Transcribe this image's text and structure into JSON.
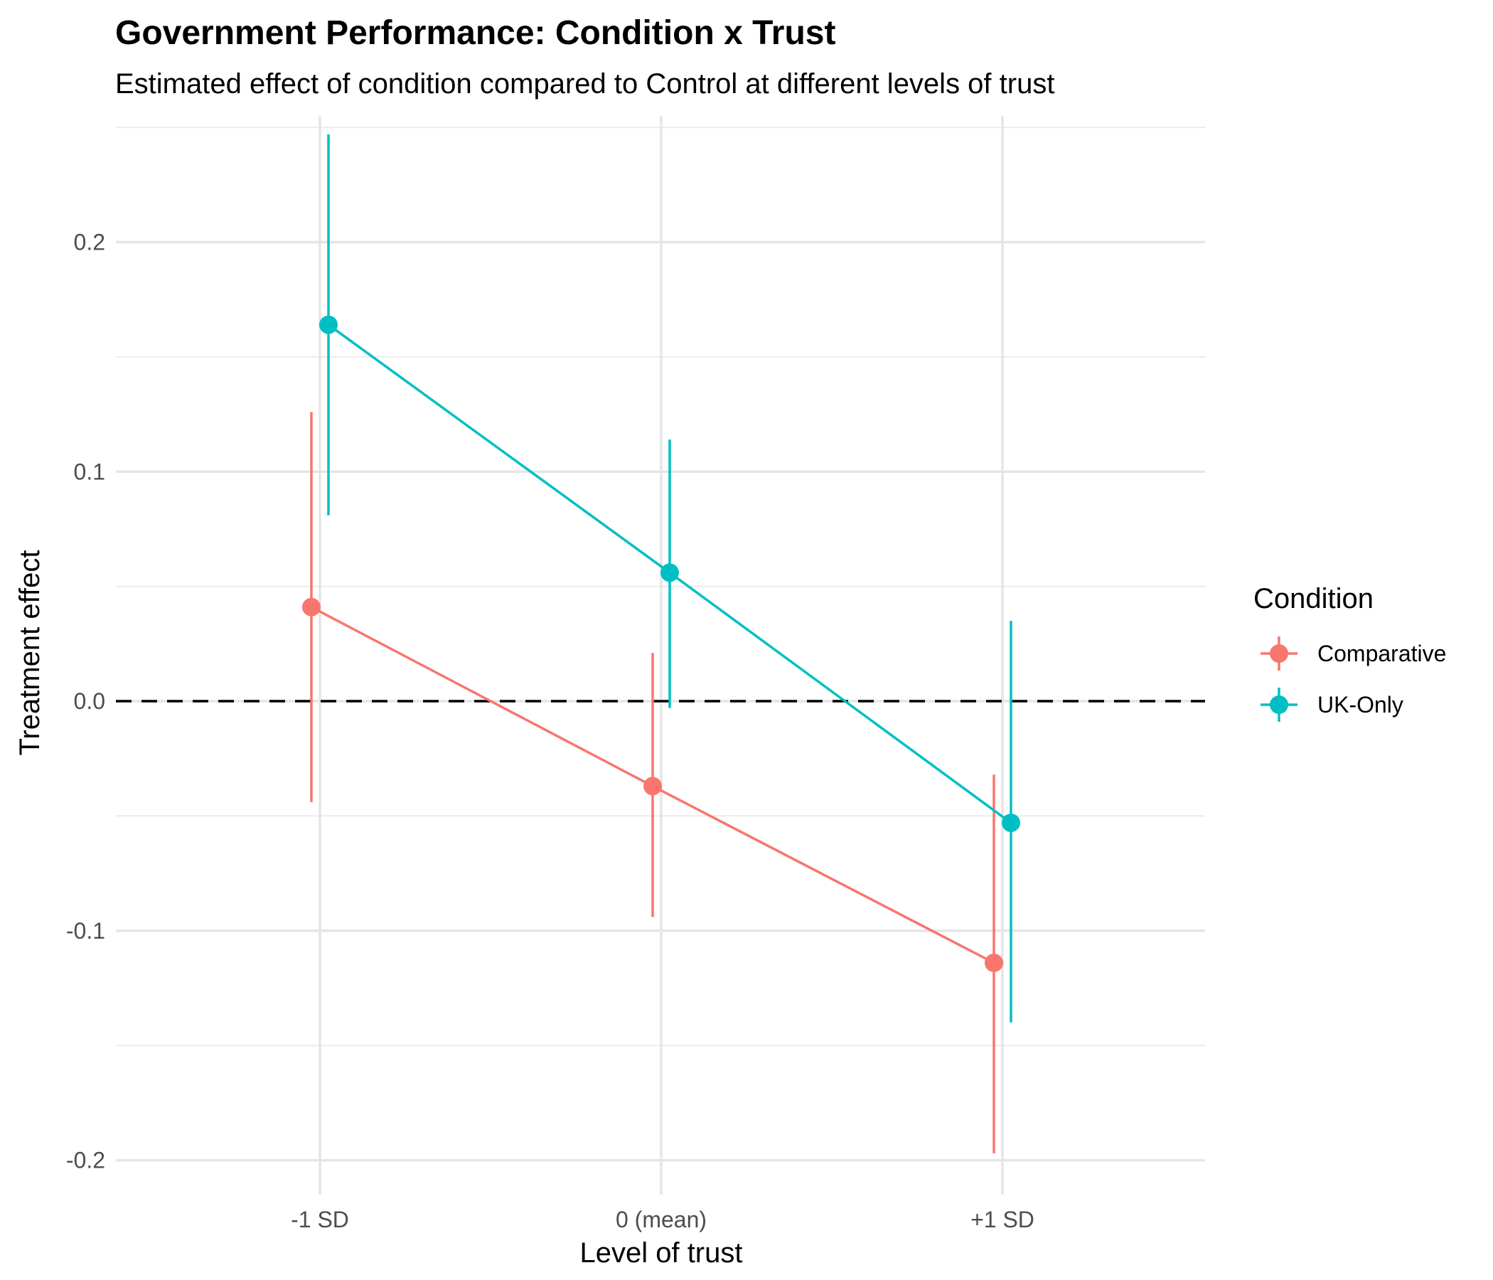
{
  "chart_data": {
    "type": "scatter",
    "title": "Government Performance: Condition x Trust",
    "subtitle": "Estimated effect of condition compared to Control at different levels of trust",
    "xlabel": "Level of trust",
    "ylabel": "Treatment effect",
    "categories": [
      "-1 SD",
      "0 (mean)",
      "+1 SD"
    ],
    "ylim": [
      -0.215,
      0.255
    ],
    "yticks": [
      -0.2,
      -0.1,
      0.0,
      0.1,
      0.2
    ],
    "ytick_labels": [
      "-0.2",
      "-0.1",
      "0.0",
      "0.1",
      "0.2"
    ],
    "reference_line": 0,
    "grid": true,
    "legend_title": "Condition",
    "legend_position": "right",
    "series": [
      {
        "name": "Comparative",
        "color": "#F8766D",
        "values": [
          0.041,
          -0.037,
          -0.114
        ],
        "lower": [
          -0.044,
          -0.094,
          -0.197
        ],
        "upper": [
          0.126,
          0.021,
          -0.032
        ]
      },
      {
        "name": "UK-Only",
        "color": "#00BFC4",
        "values": [
          0.164,
          0.056,
          -0.053
        ],
        "lower": [
          0.081,
          -0.003,
          -0.14
        ],
        "upper": [
          0.247,
          0.114,
          0.035
        ]
      }
    ]
  }
}
